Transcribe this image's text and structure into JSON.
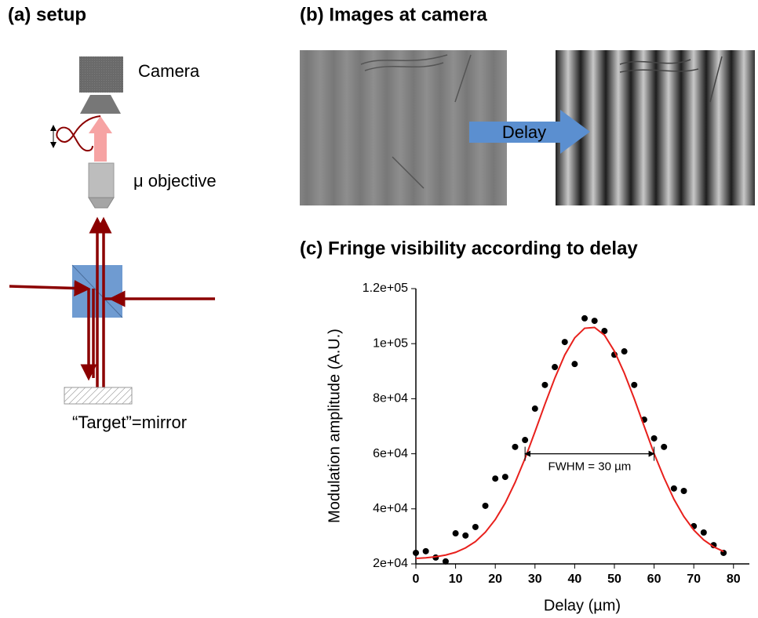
{
  "panels": {
    "a": {
      "title": "(a) setup",
      "camera_label": "Camera",
      "objective_label": "μ objective",
      "mirror_label": "“Target”=mirror"
    },
    "b": {
      "title": "(b) Images at camera",
      "arrow_label": "Delay"
    }
  },
  "chart_data": {
    "type": "scatter",
    "title": "(c) Fringe visibility according to delay",
    "x_label": "Delay (µm)",
    "y_label": "Modulation amplitude (A.U.)",
    "x": [
      0,
      2.5,
      5,
      7.5,
      10,
      12.5,
      15,
      17.5,
      20,
      22.5,
      25,
      27.5,
      30,
      32.5,
      35,
      37.5,
      40,
      42.5,
      45,
      47.5,
      50,
      52.5,
      55,
      57.5,
      60,
      62.5,
      65,
      67.5,
      70,
      72.5,
      75,
      77.5
    ],
    "series": [
      {
        "style": "markers",
        "color": "#000000",
        "values": [
          24000,
          24600,
          22300,
          20900,
          31100,
          30300,
          33400,
          41100,
          51000,
          51600,
          62500,
          65000,
          76400,
          85000,
          91500,
          100600,
          92600,
          109200,
          108300,
          104600,
          96000,
          97200,
          85000,
          72400,
          65600,
          62500,
          47400,
          46500,
          33700,
          31400,
          26800,
          24000
        ]
      },
      {
        "style": "line",
        "color": "#e8201c",
        "values": [
          22000,
          22200,
          22600,
          23200,
          24200,
          25800,
          28100,
          31500,
          36100,
          42100,
          49600,
          58300,
          68000,
          78000,
          87500,
          95900,
          102100,
          105600,
          105900,
          103100,
          97300,
          89300,
          80000,
          70000,
          60100,
          51300,
          43500,
          37200,
          32300,
          28700,
          26200,
          24500
        ]
      }
    ],
    "xlim": [
      0,
      84
    ],
    "ylim": [
      20000,
      120000
    ],
    "xticks": [
      0,
      10,
      20,
      30,
      40,
      50,
      60,
      70,
      80
    ],
    "yticks": [
      {
        "value": 20000,
        "label": "2e+04"
      },
      {
        "value": 40000,
        "label": "4e+04"
      },
      {
        "value": 60000,
        "label": "6e+04"
      },
      {
        "value": 80000,
        "label": "8e+04"
      },
      {
        "value": 100000,
        "label": "1e+05"
      },
      {
        "value": 120000,
        "label": "1.2e+05"
      }
    ],
    "annotation": {
      "text": "FWHM = 30 µm",
      "x": [
        27.5,
        60
      ],
      "y": 60000
    }
  }
}
